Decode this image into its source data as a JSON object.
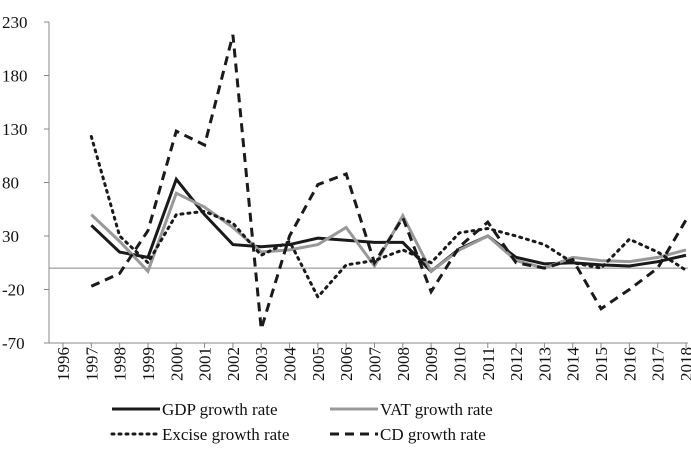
{
  "chart_data": {
    "type": "line",
    "categories": [
      "1996",
      "1997",
      "1998",
      "1999",
      "2000",
      "2001",
      "2002",
      "2003",
      "2004",
      "2005",
      "2006",
      "2007",
      "2008",
      "2009",
      "2010",
      "2011",
      "2012",
      "2013",
      "2014",
      "2015",
      "2016",
      "2017",
      "2018"
    ],
    "series": [
      {
        "name": "GDP growth rate",
        "color": "#1a1a1a",
        "dash": "solid",
        "values": [
          null,
          40,
          15,
          10,
          83,
          50,
          22,
          20,
          22,
          28,
          26,
          24,
          24,
          -3,
          18,
          30,
          10,
          4,
          5,
          3,
          2,
          6,
          12
        ]
      },
      {
        "name": "VAT growth rate",
        "color": "#999999",
        "dash": "solid",
        "values": [
          null,
          50,
          25,
          -3,
          70,
          57,
          38,
          15,
          17,
          22,
          38,
          2,
          49,
          -3,
          17,
          30,
          7,
          0,
          10,
          7,
          6,
          10,
          17
        ]
      },
      {
        "name": "Excise growth rate",
        "color": "#1a1a1a",
        "dash": "dotted",
        "values": [
          null,
          123,
          30,
          5,
          50,
          53,
          42,
          12,
          25,
          -27,
          3,
          7,
          17,
          5,
          33,
          37,
          30,
          22,
          5,
          0,
          27,
          15,
          -2
        ]
      },
      {
        "name": "CD growth rate",
        "color": "#1a1a1a",
        "dash": "dashed",
        "values": [
          null,
          -17,
          -5,
          35,
          128,
          115,
          218,
          -57,
          30,
          78,
          88,
          5,
          47,
          -22,
          20,
          43,
          5,
          0,
          8,
          -38,
          -20,
          0,
          45
        ]
      }
    ],
    "ylim": [
      -70,
      230
    ],
    "yticks": [
      -70,
      -20,
      30,
      80,
      130,
      180,
      230
    ],
    "grid": false
  }
}
